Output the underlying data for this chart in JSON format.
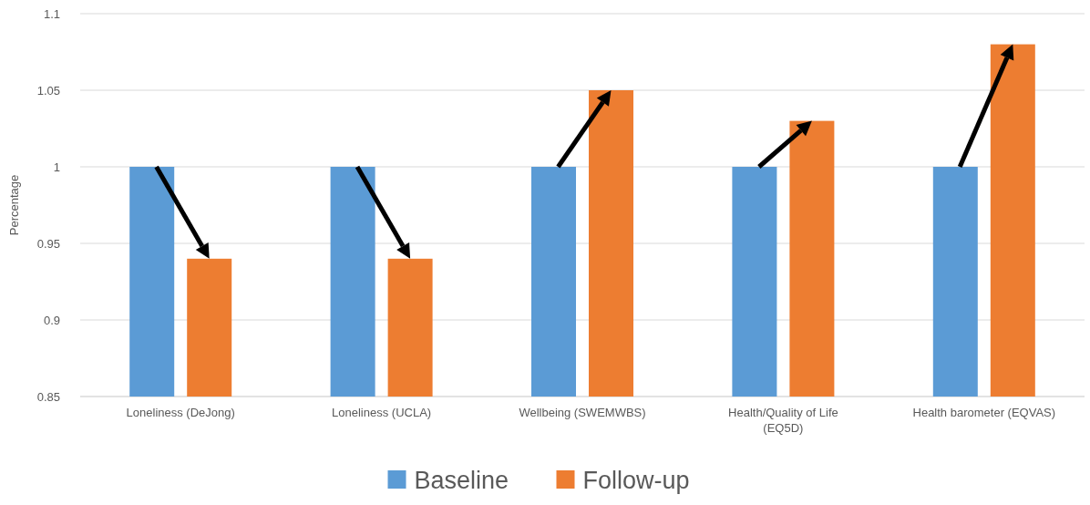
{
  "chart_data": {
    "type": "bar",
    "ylabel": "Percentage",
    "categories": [
      "Loneliness (DeJong)",
      "Loneliness (UCLA)",
      "Wellbeing (SWEMWBS)",
      "Health/Quality of Life (EQ5D)",
      "Health barometer (EQVAS)"
    ],
    "series": [
      {
        "name": "Baseline",
        "color": "#5b9bd5",
        "values": [
          1,
          1,
          1,
          1,
          1
        ]
      },
      {
        "name": "Follow-up",
        "color": "#ed7d31",
        "values": [
          0.94,
          0.94,
          1.05,
          1.03,
          1.08
        ]
      }
    ],
    "ylim": [
      0.85,
      1.1
    ],
    "yticks": [
      0.85,
      0.9,
      0.95,
      1,
      1.05,
      1.1
    ],
    "grid": "y",
    "legend": "bottom"
  }
}
